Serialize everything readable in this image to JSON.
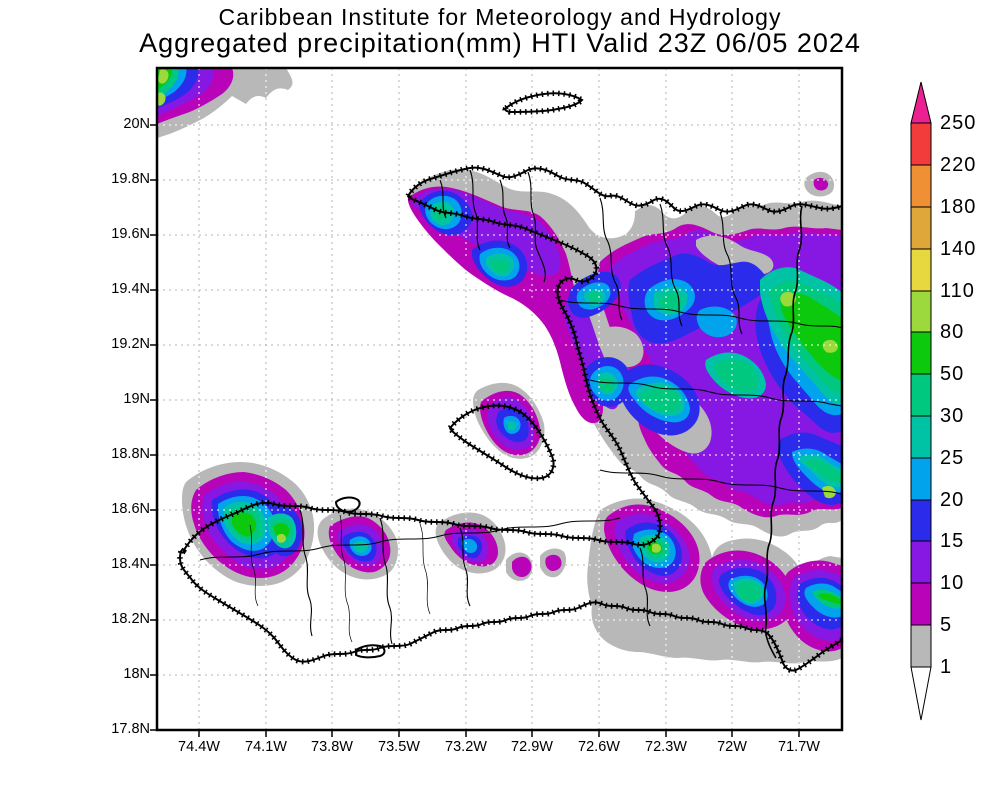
{
  "header": {
    "line1": "Caribbean Institute for Meteorology and Hydrology",
    "line2": "Aggregated precipitation(mm) HTI Valid 23Z 06/05 2024"
  },
  "axes": {
    "lat": [
      "20N",
      "19.8N",
      "19.6N",
      "19.4N",
      "19.2N",
      "19N",
      "18.8N",
      "18.6N",
      "18.4N",
      "18.2N",
      "18N",
      "17.8N"
    ],
    "lon": [
      "74.4W",
      "74.1W",
      "73.8W",
      "73.5W",
      "73.2W",
      "72.9W",
      "72.6W",
      "72.3W",
      "72W",
      "71.7W"
    ]
  },
  "colorbar": {
    "labels": [
      "250",
      "220",
      "180",
      "140",
      "110",
      "80",
      "50",
      "30",
      "25",
      "20",
      "15",
      "10",
      "5",
      "1"
    ],
    "segments": [
      {
        "range": "220-250",
        "color": "#F23B3B"
      },
      {
        "range": "180-220",
        "color": "#EE9033"
      },
      {
        "range": "140-180",
        "color": "#DFA63A"
      },
      {
        "range": "110-140",
        "color": "#E6D83E"
      },
      {
        "range": "80-110",
        "color": "#9CD93C"
      },
      {
        "range": "50-80",
        "color": "#0DC90D"
      },
      {
        "range": "30-50",
        "color": "#00C87E"
      },
      {
        "range": "25-30",
        "color": "#00C3A6"
      },
      {
        "range": "20-25",
        "color": "#00A3EC"
      },
      {
        "range": "15-20",
        "color": "#2B2BEB"
      },
      {
        "range": "10-15",
        "color": "#8718E3"
      },
      {
        "range": "5-10",
        "color": "#B803B8"
      },
      {
        "range": "1-5",
        "color": "#B8B8B8"
      }
    ],
    "arrow_top_color": "#EC2191",
    "arrow_bottom_color": "#FFFFFF"
  },
  "chart_data": {
    "type": "heatmap",
    "title": "Aggregated precipitation(mm) HTI Valid 23Z 06/05 2024",
    "region": "Haiti / Hispaniola",
    "lat_range": [
      "17.8N",
      "20.2N"
    ],
    "lon_range": [
      "74.6W",
      "71.5W"
    ],
    "units": "mm",
    "scale_levels": [
      1,
      5,
      10,
      15,
      20,
      25,
      30,
      50,
      80,
      110,
      140,
      180,
      220,
      250
    ],
    "grid": "dashed"
  }
}
